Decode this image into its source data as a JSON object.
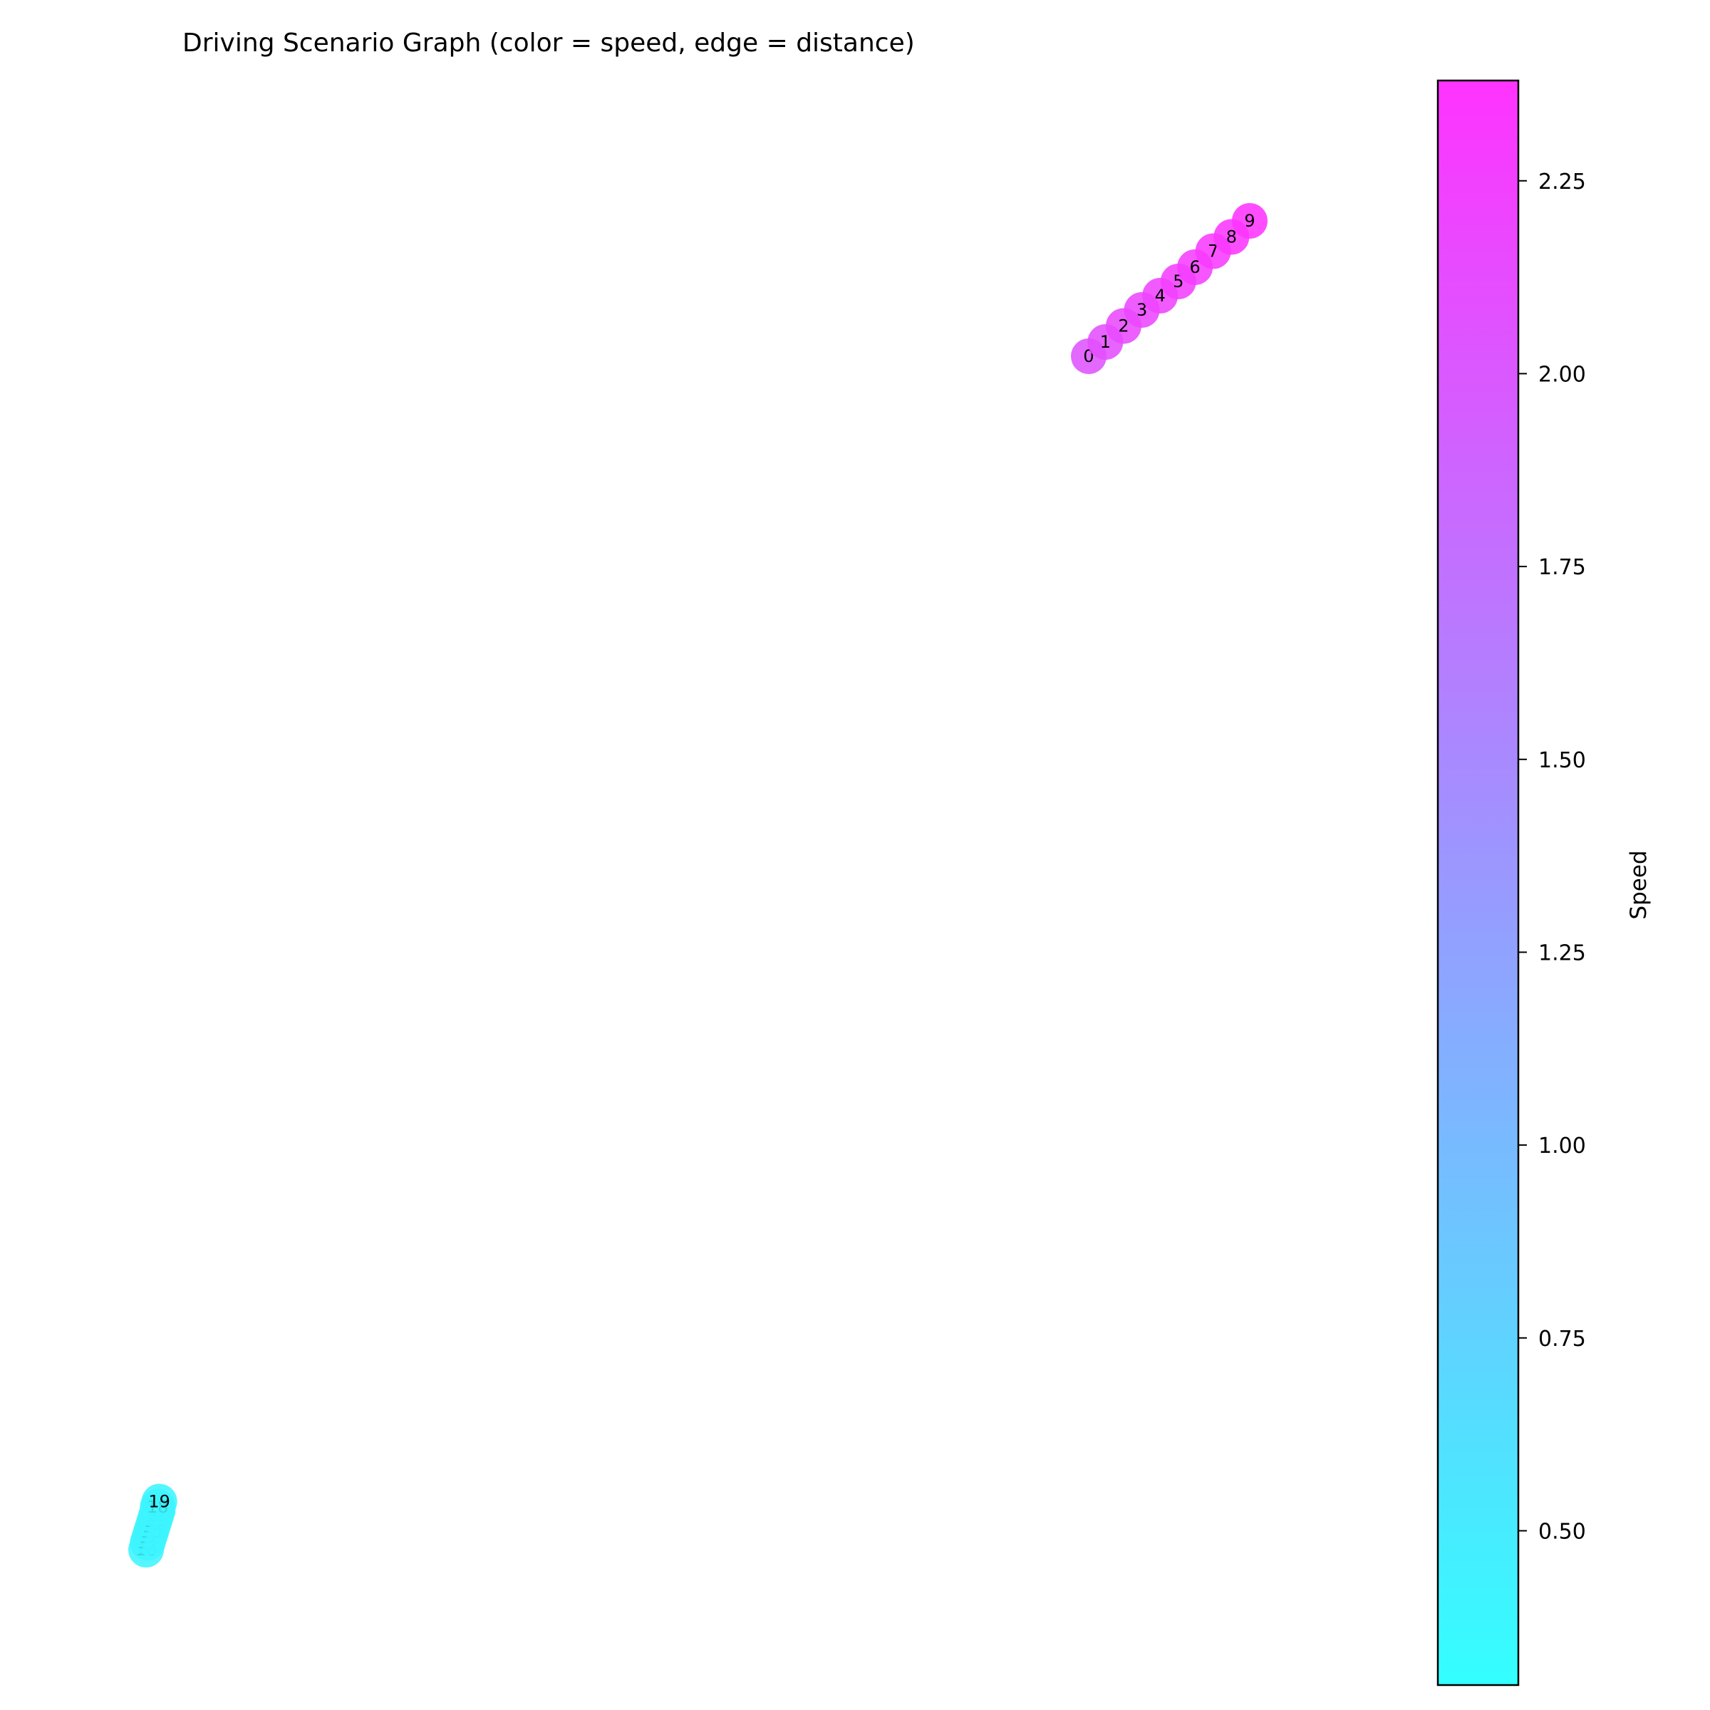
{
  "chart_data": {
    "type": "scatter",
    "title": "Driving Scenario Graph (color = speed, edge = distance)",
    "colorbar": {
      "label": "Speed",
      "range": [
        0.3,
        2.38
      ],
      "ticks": [
        "0.50",
        "0.75",
        "1.00",
        "1.25",
        "1.50",
        "1.75",
        "2.00",
        "2.25"
      ],
      "tick_values": [
        0.5,
        0.75,
        1.0,
        1.25,
        1.5,
        1.75,
        2.0,
        2.25
      ],
      "colormap": "cool",
      "color_low": "#33ffff",
      "color_high": "#ff33ff"
    },
    "nodes": [
      {
        "id": "0",
        "x": 1.0,
        "y": 1.0,
        "speed": 2.05
      },
      {
        "id": "1",
        "x": 1.1,
        "y": 1.08,
        "speed": 2.1
      },
      {
        "id": "2",
        "x": 1.21,
        "y": 1.17,
        "speed": 2.15
      },
      {
        "id": "3",
        "x": 1.32,
        "y": 1.26,
        "speed": 2.18
      },
      {
        "id": "4",
        "x": 1.43,
        "y": 1.34,
        "speed": 2.22
      },
      {
        "id": "5",
        "x": 1.54,
        "y": 1.42,
        "speed": 2.25
      },
      {
        "id": "6",
        "x": 1.64,
        "y": 1.5,
        "speed": 2.28
      },
      {
        "id": "7",
        "x": 1.75,
        "y": 1.59,
        "speed": 2.31
      },
      {
        "id": "8",
        "x": 1.86,
        "y": 1.67,
        "speed": 2.34
      },
      {
        "id": "9",
        "x": 1.97,
        "y": 1.76,
        "speed": 2.37
      },
      {
        "id": "10",
        "x": -4.68,
        "y": -5.7,
        "speed": 0.4
      },
      {
        "id": "11",
        "x": -4.67,
        "y": -5.66,
        "speed": 0.4
      },
      {
        "id": "12",
        "x": -4.66,
        "y": -5.63,
        "speed": 0.4
      },
      {
        "id": "13",
        "x": -4.65,
        "y": -5.6,
        "speed": 0.4
      },
      {
        "id": "14",
        "x": -4.64,
        "y": -5.57,
        "speed": 0.4
      },
      {
        "id": "15",
        "x": -4.63,
        "y": -5.54,
        "speed": 0.4
      },
      {
        "id": "16",
        "x": -4.62,
        "y": -5.51,
        "speed": 0.4
      },
      {
        "id": "17",
        "x": -4.61,
        "y": -5.48,
        "speed": 0.4
      },
      {
        "id": "18",
        "x": -4.61,
        "y": -5.46,
        "speed": 0.4
      },
      {
        "id": "19",
        "x": -4.6,
        "y": -5.43,
        "speed": 0.4
      }
    ]
  }
}
